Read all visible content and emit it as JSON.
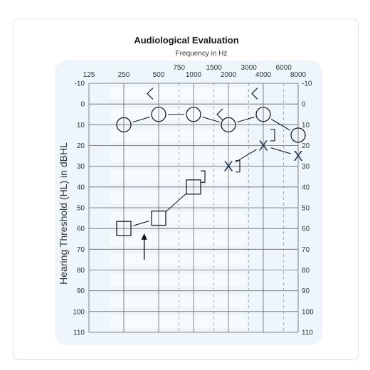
{
  "chart_data": {
    "type": "scatter",
    "title": "Audiological Evaluation",
    "xlabel": "Frequency in Hz",
    "ylabel": "Hearing Threshold (HL) in dBHL",
    "x_scale": "log",
    "x_ticks_major": [
      {
        "label": "125",
        "value": 125
      },
      {
        "label": "250",
        "value": 250
      },
      {
        "label": "500",
        "value": 500
      },
      {
        "label": "1000",
        "value": 1000
      },
      {
        "label": "2000",
        "value": 2000
      },
      {
        "label": "4000",
        "value": 4000
      },
      {
        "label": "8000",
        "value": 8000
      }
    ],
    "x_ticks_minor": [
      {
        "label": "750",
        "value": 750
      },
      {
        "label": "1500",
        "value": 1500
      },
      {
        "label": "3000",
        "value": 3000
      },
      {
        "label": "6000",
        "value": 6000
      }
    ],
    "y_ticks": [
      "-10",
      "0",
      "10",
      "20",
      "30",
      "40",
      "50",
      "60",
      "70",
      "80",
      "90",
      "100",
      "110"
    ],
    "ylim": [
      -10,
      110
    ],
    "y_inverted": true,
    "grid": true,
    "series": [
      {
        "marker": "circle",
        "points": [
          {
            "x": 250,
            "y": 10
          },
          {
            "x": 500,
            "y": 5
          },
          {
            "x": 1000,
            "y": 5
          },
          {
            "x": 2000,
            "y": 10
          },
          {
            "x": 4000,
            "y": 5
          },
          {
            "x": 8000,
            "y": 15
          }
        ]
      },
      {
        "marker": "square",
        "points": [
          {
            "x": 250,
            "y": 60
          },
          {
            "x": 500,
            "y": 55
          },
          {
            "x": 1000,
            "y": 40
          }
        ]
      },
      {
        "marker": "x",
        "points": [
          {
            "x": 2000,
            "y": 30
          },
          {
            "x": 4000,
            "y": 20
          },
          {
            "x": 8000,
            "y": 25
          }
        ]
      },
      {
        "marker": "left-bracket",
        "points": [
          {
            "x": 500,
            "y": -5
          },
          {
            "x": 2000,
            "y": 5
          },
          {
            "x": 4000,
            "y": -5
          }
        ]
      },
      {
        "marker": "right-bracket",
        "points": [
          {
            "x": 1000,
            "y": 35
          },
          {
            "x": 2000,
            "y": 30
          },
          {
            "x": 4000,
            "y": 15
          }
        ]
      }
    ],
    "annotations": [
      {
        "type": "arrow",
        "x": 375,
        "y_from": 75,
        "y_to": 63
      }
    ],
    "colors": {
      "background_panel": "#eef6fc",
      "grid": "#666666",
      "marker": "#1d1d1d",
      "x_marker": "#1f3550"
    }
  }
}
